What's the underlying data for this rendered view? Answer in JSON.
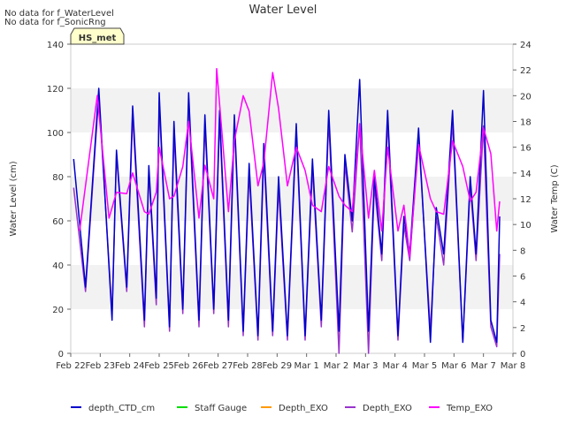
{
  "chart_data": {
    "type": "line",
    "title": "Water Level",
    "notes": [
      "No data for f_WaterLevel",
      "No data for f_SonicRng"
    ],
    "station_badge": "HS_met",
    "xlabel": "",
    "ylabel_left": "Water Level (cm)",
    "ylabel_right": "Water Temp (C)",
    "ylim_left": [
      0,
      140
    ],
    "ylim_right": [
      0,
      24
    ],
    "xlim": [
      0,
      15
    ],
    "left_ticks": [
      0,
      20,
      40,
      60,
      80,
      100,
      120,
      140
    ],
    "right_ticks": [
      0,
      2,
      4,
      6,
      8,
      10,
      12,
      14,
      16,
      18,
      20,
      22,
      24
    ],
    "x_ticks": [
      {
        "label": "Feb 22",
        "x": 0
      },
      {
        "label": "Feb 23",
        "x": 1
      },
      {
        "label": "Feb 24",
        "x": 2
      },
      {
        "label": "Feb 25",
        "x": 3
      },
      {
        "label": "Feb 26",
        "x": 4
      },
      {
        "label": "Feb 27",
        "x": 5
      },
      {
        "label": "Feb 28",
        "x": 6
      },
      {
        "label": "Feb 29",
        "x": 7
      },
      {
        "label": "Mar 1",
        "x": 8
      },
      {
        "label": "Mar 2",
        "x": 9
      },
      {
        "label": "Mar 3",
        "x": 10
      },
      {
        "label": "Mar 4",
        "x": 11
      },
      {
        "label": "Mar 5",
        "x": 12
      },
      {
        "label": "Mar 6",
        "x": 13
      },
      {
        "label": "Mar 7",
        "x": 14
      },
      {
        "label": "Mar 8",
        "x": 15
      }
    ],
    "grid": "horizontal bands",
    "legend_position": "bottom",
    "series": [
      {
        "name": "depth_CTD_cm",
        "color": "#0000cc",
        "axis": "left",
        "values": [
          [
            0.1,
            88
          ],
          [
            0.5,
            30
          ],
          [
            0.95,
            120
          ],
          [
            1.4,
            15
          ],
          [
            1.55,
            92
          ],
          [
            1.9,
            30
          ],
          [
            2.1,
            112
          ],
          [
            2.5,
            15
          ],
          [
            2.65,
            85
          ],
          [
            2.9,
            25
          ],
          [
            3.0,
            118
          ],
          [
            3.35,
            12
          ],
          [
            3.5,
            105
          ],
          [
            3.8,
            20
          ],
          [
            4.0,
            118
          ],
          [
            4.35,
            15
          ],
          [
            4.55,
            108
          ],
          [
            4.85,
            20
          ],
          [
            5.05,
            110
          ],
          [
            5.35,
            15
          ],
          [
            5.55,
            108
          ],
          [
            5.85,
            10
          ],
          [
            6.05,
            86
          ],
          [
            6.35,
            8
          ],
          [
            6.55,
            95
          ],
          [
            6.85,
            10
          ],
          [
            7.05,
            80
          ],
          [
            7.35,
            8
          ],
          [
            7.65,
            104
          ],
          [
            7.95,
            8
          ],
          [
            8.2,
            88
          ],
          [
            8.5,
            15
          ],
          [
            8.75,
            110
          ],
          [
            9.1,
            10
          ],
          [
            9.3,
            90
          ],
          [
            9.55,
            60
          ],
          [
            9.8,
            124
          ],
          [
            10.1,
            10
          ],
          [
            10.3,
            80
          ],
          [
            10.55,
            45
          ],
          [
            10.75,
            110
          ],
          [
            11.1,
            8
          ],
          [
            11.3,
            62
          ],
          [
            11.5,
            45
          ],
          [
            11.8,
            102
          ],
          [
            12.2,
            5
          ],
          [
            12.4,
            66
          ],
          [
            12.65,
            45
          ],
          [
            12.95,
            110
          ],
          [
            13.3,
            5
          ],
          [
            13.55,
            80
          ],
          [
            13.75,
            45
          ],
          [
            14.0,
            119
          ],
          [
            14.25,
            15
          ],
          [
            14.45,
            5
          ],
          [
            14.55,
            62
          ]
        ]
      },
      {
        "name": "Staff Gauge",
        "color": "#00dd00",
        "axis": "left",
        "values": []
      },
      {
        "name": "Depth_EXO",
        "color": "#ff9900",
        "axis": "left",
        "values": []
      },
      {
        "name": "Depth_EXO",
        "color": "#9933cc",
        "axis": "left",
        "values": [
          [
            0.1,
            75
          ],
          [
            0.5,
            28
          ],
          [
            0.95,
            117
          ],
          [
            1.4,
            18
          ],
          [
            1.55,
            90
          ],
          [
            1.9,
            28
          ],
          [
            2.1,
            108
          ],
          [
            2.5,
            12
          ],
          [
            2.65,
            82
          ],
          [
            2.9,
            22
          ],
          [
            3.0,
            114
          ],
          [
            3.35,
            10
          ],
          [
            3.5,
            100
          ],
          [
            3.8,
            18
          ],
          [
            4.0,
            114
          ],
          [
            4.35,
            12
          ],
          [
            4.55,
            104
          ],
          [
            4.85,
            18
          ],
          [
            5.05,
            106
          ],
          [
            5.35,
            12
          ],
          [
            5.55,
            104
          ],
          [
            5.85,
            8
          ],
          [
            6.05,
            82
          ],
          [
            6.35,
            6
          ],
          [
            6.55,
            90
          ],
          [
            6.85,
            8
          ],
          [
            7.05,
            75
          ],
          [
            7.35,
            6
          ],
          [
            7.65,
            100
          ],
          [
            7.95,
            6
          ],
          [
            8.2,
            84
          ],
          [
            8.5,
            12
          ],
          [
            8.75,
            106
          ],
          [
            9.1,
            0
          ],
          [
            9.3,
            86
          ],
          [
            9.55,
            55
          ],
          [
            9.8,
            104
          ],
          [
            10.1,
            0
          ],
          [
            10.3,
            76
          ],
          [
            10.55,
            42
          ],
          [
            10.75,
            105
          ],
          [
            11.1,
            6
          ],
          [
            11.3,
            58
          ],
          [
            11.5,
            42
          ],
          [
            11.8,
            98
          ],
          [
            12.2,
            10
          ],
          [
            12.4,
            62
          ],
          [
            12.65,
            40
          ],
          [
            12.95,
            105
          ],
          [
            13.3,
            5
          ],
          [
            13.55,
            76
          ],
          [
            13.75,
            42
          ],
          [
            14.0,
            103
          ],
          [
            14.25,
            12
          ],
          [
            14.45,
            3
          ],
          [
            14.55,
            45
          ]
        ]
      },
      {
        "name": "Temp_EXO",
        "color": "#ff00ff",
        "axis": "right",
        "values": [
          [
            0.3,
            9.5
          ],
          [
            0.9,
            20
          ],
          [
            1.3,
            10.5
          ],
          [
            1.55,
            12.5
          ],
          [
            1.9,
            12.4
          ],
          [
            2.1,
            14
          ],
          [
            2.5,
            11
          ],
          [
            2.65,
            10.8
          ],
          [
            2.9,
            12.5
          ],
          [
            3.0,
            16
          ],
          [
            3.35,
            12
          ],
          [
            3.5,
            12.2
          ],
          [
            3.8,
            14.5
          ],
          [
            4.0,
            18
          ],
          [
            4.35,
            10.5
          ],
          [
            4.55,
            14.6
          ],
          [
            4.85,
            12
          ],
          [
            4.95,
            22.1
          ],
          [
            5.35,
            11
          ],
          [
            5.55,
            16.5
          ],
          [
            5.85,
            20
          ],
          [
            6.05,
            18.8
          ],
          [
            6.35,
            13
          ],
          [
            6.55,
            14.8
          ],
          [
            6.85,
            21.8
          ],
          [
            7.05,
            19
          ],
          [
            7.35,
            13
          ],
          [
            7.65,
            16
          ],
          [
            7.95,
            14.2
          ],
          [
            8.2,
            11.5
          ],
          [
            8.5,
            11
          ],
          [
            8.75,
            14.5
          ],
          [
            9.1,
            12.2
          ],
          [
            9.3,
            11.5
          ],
          [
            9.55,
            11
          ],
          [
            9.8,
            17.8
          ],
          [
            10.1,
            10.5
          ],
          [
            10.3,
            14.2
          ],
          [
            10.55,
            9.5
          ],
          [
            10.75,
            16
          ],
          [
            11.1,
            9.5
          ],
          [
            11.3,
            11.5
          ],
          [
            11.5,
            7.5
          ],
          [
            11.8,
            16.2
          ],
          [
            12.2,
            12
          ],
          [
            12.4,
            11
          ],
          [
            12.65,
            10.8
          ],
          [
            12.95,
            16.5
          ],
          [
            13.3,
            14.5
          ],
          [
            13.55,
            11.8
          ],
          [
            13.75,
            12.5
          ],
          [
            14.0,
            17.5
          ],
          [
            14.25,
            15.5
          ],
          [
            14.45,
            9.5
          ],
          [
            14.55,
            11.8
          ]
        ]
      }
    ]
  }
}
